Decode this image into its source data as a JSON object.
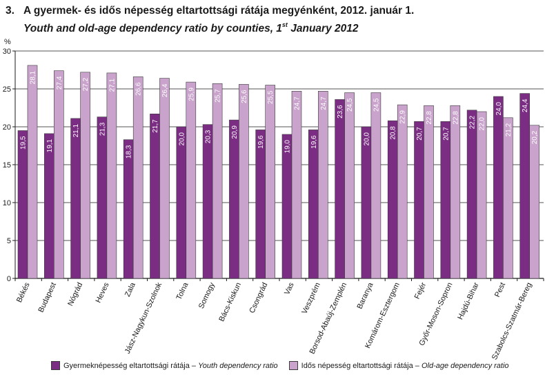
{
  "title_number": "3.",
  "title_hu": "A gyermek- és idős népesség eltartottsági rátája megyénként, 2012. január 1.",
  "title_en_part1": "Youth and old-age dependency ratio by counties, 1",
  "title_en_sup": "st",
  "title_en_part2": " January  2012",
  "colors": {
    "youth": "#7b2d84",
    "old": "#c9a3cc",
    "grid": "#1a1a1a"
  },
  "legend": {
    "youth_hu": "Gyermeknépesség eltartottsági rátája –",
    "youth_en": "Youth dependency ratio",
    "old_hu": "Idős népesség eltartottsági rátája –",
    "old_en": "Old-age dependency ratio"
  },
  "chart_data": {
    "type": "bar",
    "ylabel": "%",
    "ylim": [
      0,
      30
    ],
    "yticks": [
      0,
      5,
      10,
      15,
      20,
      25,
      30
    ],
    "grid": true,
    "legend_position": "bottom",
    "categories": [
      "Békés",
      "Budapest",
      "Nógrád",
      "Heves",
      "Zala",
      "Jász-Nagykun-Szolnok",
      "Tolna",
      "Somogy",
      "Bács-Kiskun",
      "Csongrád",
      "Vas",
      "Veszprém",
      "Borsod-Abaúj-Zemplén",
      "Baranya",
      "Komárom-Esztergom",
      "Fejér",
      "Győr-Moson-Sopron",
      "Hajdú-Bihar",
      "Pest",
      "Szabolcs-Szatmár-Bereg"
    ],
    "series": [
      {
        "name": "Gyermeknépesség eltartottsági rátája – Youth dependency ratio",
        "values": [
          19.5,
          19.1,
          21.1,
          21.3,
          18.3,
          21.7,
          20.0,
          20.3,
          20.9,
          19.6,
          19.0,
          19.6,
          23.6,
          20.0,
          20.8,
          20.7,
          20.7,
          22.2,
          24.0,
          24.4
        ],
        "labels": [
          "19,5",
          "19,1",
          "21,1",
          "21,3",
          "18,3",
          "21,7",
          "20,0",
          "20,3",
          "20,9",
          "19,6",
          "19,0",
          "19,6",
          "23,6",
          "20,0",
          "20,8",
          "20,7",
          "20,7",
          "22,2",
          "24,0",
          "24,4"
        ]
      },
      {
        "name": "Idős népesség eltartottsági rátája – Old-age dependency ratio",
        "values": [
          28.1,
          27.4,
          27.2,
          27.1,
          26.6,
          26.4,
          25.9,
          25.7,
          25.6,
          25.5,
          24.7,
          24.7,
          24.5,
          24.5,
          22.9,
          22.8,
          22.8,
          22.0,
          21.2,
          20.2
        ],
        "labels": [
          "28,1",
          "27,4",
          "27,2",
          "27,1",
          "26,6",
          "26,4",
          "25,9",
          "25,7",
          "25,6",
          "25,5",
          "24,7",
          "24,7",
          "24,5",
          "24,5",
          "22,9",
          "22,8",
          "22,8",
          "22,0",
          "21,2",
          "20,2"
        ]
      }
    ]
  }
}
